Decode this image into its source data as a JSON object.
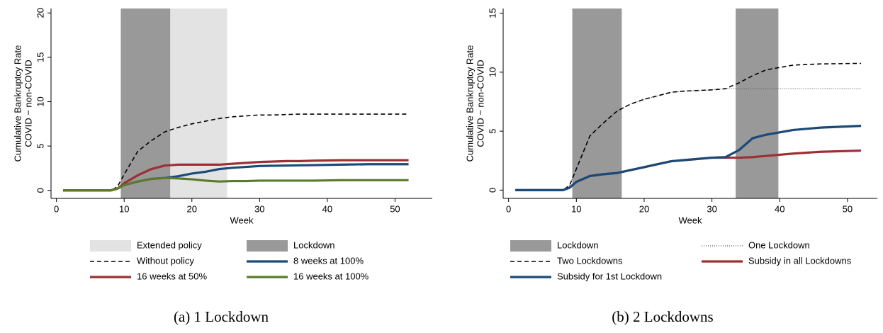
{
  "chart_data": [
    {
      "type": "line",
      "caption": "(a) 1 Lockdown",
      "xlabel": "Week",
      "ylabel": [
        "Cumulative Bankruptcy Rate",
        "COVID − non-COVID"
      ],
      "xlim": [
        -0.8,
        55.5
      ],
      "ylim": [
        -0.9,
        20.5
      ],
      "xticks": [
        0,
        10,
        20,
        30,
        40,
        50
      ],
      "yticks": [
        0,
        5,
        10,
        15,
        20
      ],
      "spans": [
        {
          "name": "Extended policy",
          "color": "#e3e3e3",
          "ranges": [
            [
              16.8,
              25.2
            ]
          ]
        },
        {
          "name": "Lockdown",
          "color": "#999999",
          "ranges": [
            [
              9.5,
              16.8
            ]
          ]
        }
      ],
      "x": [
        1,
        4,
        8,
        9,
        10,
        12,
        14,
        16,
        18,
        20,
        22,
        24,
        26,
        28,
        30,
        32,
        34,
        36,
        38,
        42,
        46,
        52
      ],
      "series": [
        {
          "name": "Without policy",
          "color": "#000000",
          "style": "dashed",
          "values": [
            0,
            0,
            0,
            0.4,
            1.8,
            4.4,
            5.6,
            6.6,
            7.1,
            7.5,
            7.8,
            8.1,
            8.3,
            8.4,
            8.5,
            8.5,
            8.55,
            8.6,
            8.6,
            8.6,
            8.6,
            8.6
          ]
        },
        {
          "name": "8 weeks at 100%",
          "color": "#1a4a78",
          "style": "solid",
          "values": [
            0,
            0,
            0,
            0.2,
            0.6,
            1.0,
            1.3,
            1.4,
            1.6,
            1.9,
            2.1,
            2.4,
            2.55,
            2.65,
            2.75,
            2.78,
            2.8,
            2.83,
            2.85,
            2.9,
            2.95,
            2.95
          ]
        },
        {
          "name": "16 weeks at 50%",
          "color": "#9c3034",
          "style": "solid",
          "values": [
            0,
            0,
            0,
            0.2,
            0.8,
            1.7,
            2.4,
            2.8,
            2.9,
            2.9,
            2.9,
            2.9,
            3.0,
            3.1,
            3.2,
            3.25,
            3.3,
            3.3,
            3.35,
            3.4,
            3.4,
            3.4
          ]
        },
        {
          "name": "16 weeks at 100%",
          "color": "#5b7a2c",
          "style": "solid",
          "values": [
            0,
            0,
            0,
            0.2,
            0.6,
            1.0,
            1.3,
            1.4,
            1.35,
            1.25,
            1.1,
            1.0,
            1.05,
            1.05,
            1.1,
            1.1,
            1.1,
            1.1,
            1.1,
            1.15,
            1.15,
            1.15
          ]
        }
      ]
    },
    {
      "type": "line",
      "caption": "(b) 2 Lockdowns",
      "xlabel": "Week",
      "ylabel": [
        "Cumulative Bankruptcy Rate",
        "COVID − non-COVID"
      ],
      "xlim": [
        -0.8,
        54.4
      ],
      "ylim": [
        -0.7,
        15.4
      ],
      "xticks": [
        0,
        10,
        20,
        30,
        40,
        50
      ],
      "yticks": [
        0,
        5,
        10,
        15
      ],
      "spans": [
        {
          "name": "Lockdown",
          "color": "#999999",
          "ranges": [
            [
              9.4,
              16.7
            ],
            [
              33.5,
              39.8
            ]
          ]
        }
      ],
      "x": [
        1,
        4,
        8,
        9,
        10,
        12,
        14,
        16,
        18,
        20,
        22,
        24,
        26,
        28,
        30,
        32,
        34,
        36,
        38,
        42,
        46,
        52
      ],
      "series": [
        {
          "name": "One Lockdown",
          "color": "#555555",
          "style": "dotted",
          "values": [
            0,
            0,
            0,
            0.4,
            1.8,
            4.6,
            5.7,
            6.7,
            7.3,
            7.7,
            8.0,
            8.3,
            8.4,
            8.45,
            8.5,
            8.6,
            8.6,
            8.6,
            8.6,
            8.6,
            8.6,
            8.6
          ]
        },
        {
          "name": "Two Lockdowns",
          "color": "#000000",
          "style": "dashed",
          "values": [
            0,
            0,
            0,
            0.4,
            1.8,
            4.6,
            5.7,
            6.7,
            7.3,
            7.7,
            8.0,
            8.3,
            8.4,
            8.45,
            8.5,
            8.6,
            9.1,
            9.7,
            10.2,
            10.6,
            10.7,
            10.75
          ]
        },
        {
          "name": "Subsidy in all Lockdowns",
          "color": "#9c3034",
          "style": "solid",
          "values": [
            0,
            0,
            0,
            0.2,
            0.7,
            1.2,
            1.35,
            1.45,
            1.7,
            1.95,
            2.2,
            2.45,
            2.55,
            2.65,
            2.75,
            2.75,
            2.75,
            2.8,
            2.9,
            3.1,
            3.25,
            3.35
          ]
        },
        {
          "name": "Subsidy for 1st Lockdown",
          "color": "#1a4a78",
          "style": "solid",
          "values": [
            0,
            0,
            0,
            0.2,
            0.7,
            1.2,
            1.35,
            1.45,
            1.7,
            1.95,
            2.2,
            2.45,
            2.55,
            2.65,
            2.75,
            2.8,
            3.4,
            4.4,
            4.7,
            5.1,
            5.3,
            5.45
          ]
        }
      ]
    }
  ]
}
